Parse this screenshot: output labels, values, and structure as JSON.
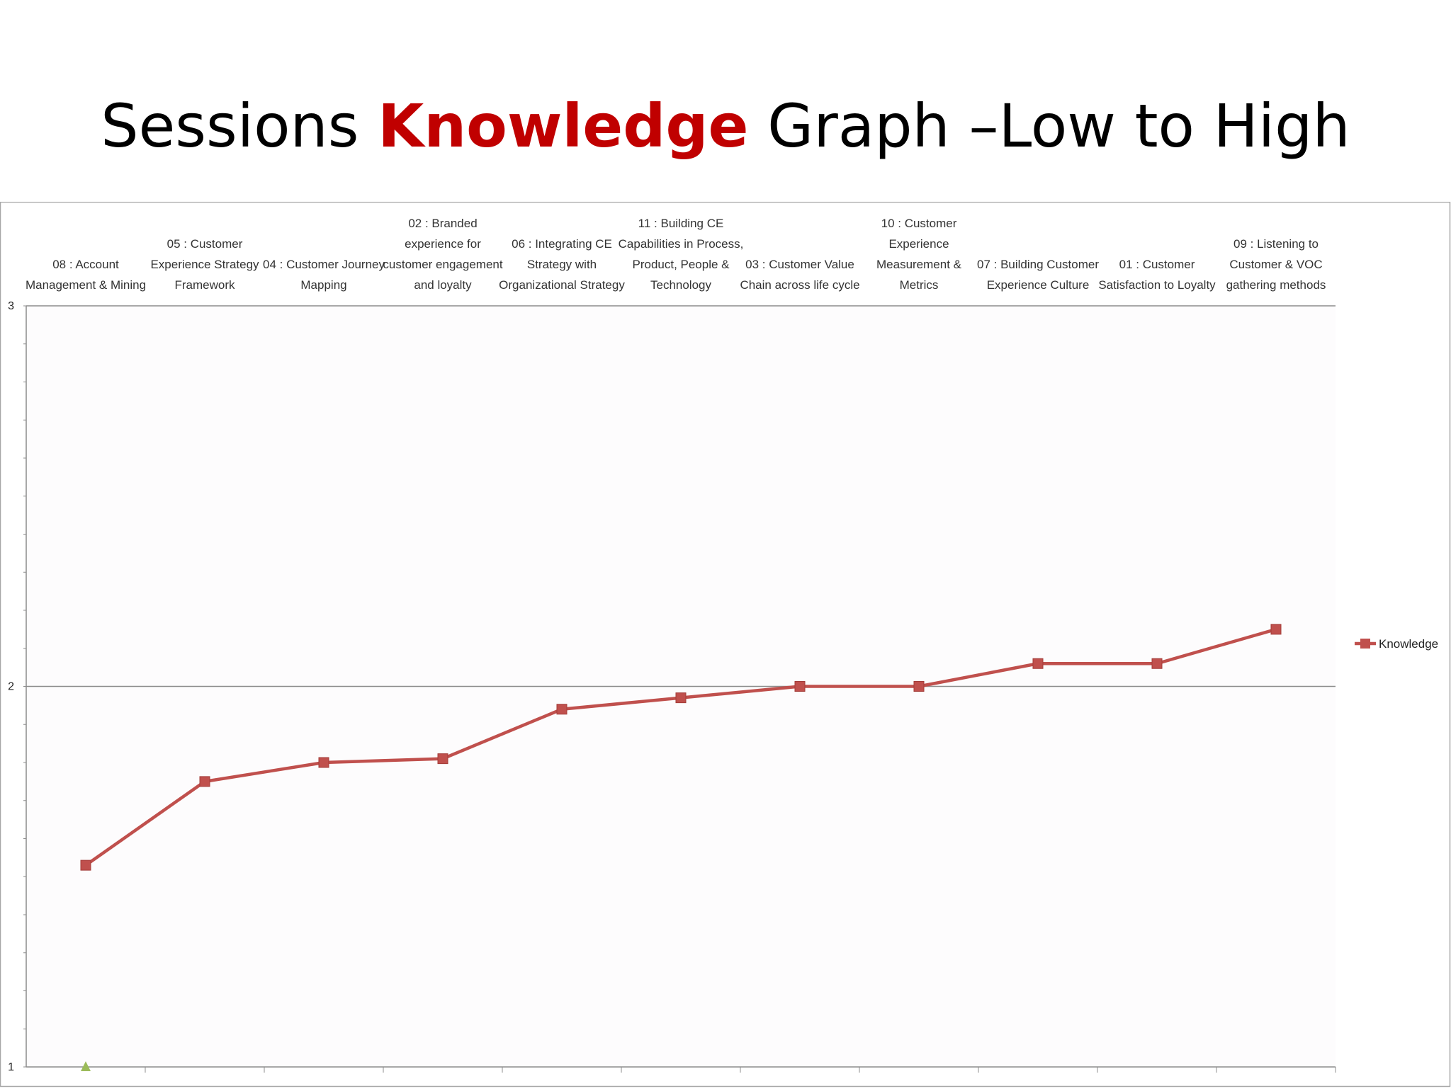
{
  "title": {
    "part1": "Sessions ",
    "part2": "Knowledge",
    "part3": " Graph –Low to High"
  },
  "chart_data": {
    "type": "line",
    "categories": [
      [
        "08 : Account",
        "Management & Mining"
      ],
      [
        "05 : Customer",
        "Experience Strategy",
        "Framework"
      ],
      [
        "04 : Customer Journey",
        "Mapping"
      ],
      [
        "02 : Branded",
        "experience for",
        "customer engagement",
        "and loyalty"
      ],
      [
        "06 : Integrating CE",
        "Strategy with",
        "Organizational Strategy"
      ],
      [
        "11 : Building CE",
        "Capabilities in Process,",
        "Product, People &",
        "Technology"
      ],
      [
        "03 : Customer Value",
        "Chain across life cycle"
      ],
      [
        "10 : Customer",
        "Experience",
        "Measurement &",
        "Metrics"
      ],
      [
        "07 : Building Customer",
        "Experience Culture"
      ],
      [
        "01 : Customer",
        "Satisfaction to Loyalty"
      ],
      [
        "09 : Listening to",
        "Customer & VOC",
        "gathering methods"
      ]
    ],
    "series": [
      {
        "name": "Knowledge",
        "color": "#c0504d",
        "values": [
          1.53,
          1.75,
          1.8,
          1.81,
          1.94,
          1.97,
          2.0,
          2.0,
          2.06,
          2.06,
          2.15
        ]
      }
    ],
    "extra_marker": {
      "category_index": 0,
      "value": 1.0,
      "color": "#9bbb59"
    },
    "yticks": [
      "1",
      "2",
      "3"
    ],
    "ylim": [
      1,
      3
    ],
    "legend_position": "right"
  }
}
